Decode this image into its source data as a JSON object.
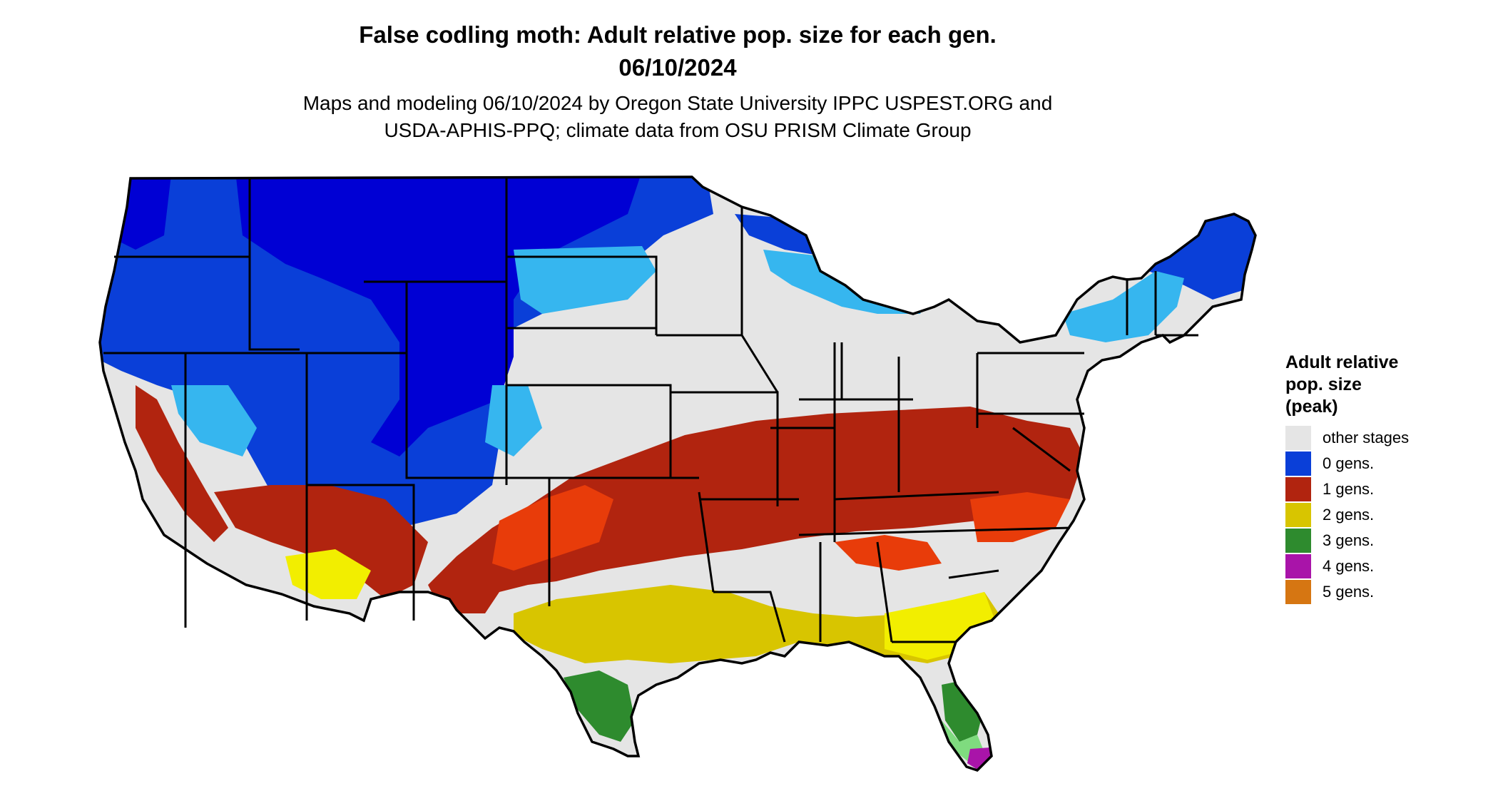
{
  "title": {
    "line1": "False codling moth: Adult relative pop. size for each gen.",
    "line2": "06/10/2024"
  },
  "subtitle": {
    "line1": "Maps and modeling 06/10/2024 by Oregon State University IPPC USPEST.ORG and",
    "line2": "USDA-APHIS-PPQ; climate data from OSU PRISM Climate Group"
  },
  "legend": {
    "title_lines": [
      "Adult relative",
      "pop. size",
      "(peak)"
    ],
    "items": [
      {
        "label": "other stages",
        "color": "#e5e5e5"
      },
      {
        "label": "0 gens.",
        "color": "#0a3fd8"
      },
      {
        "label": "1 gens.",
        "color": "#b1240f"
      },
      {
        "label": "2 gens.",
        "color": "#d8c500"
      },
      {
        "label": "3 gens.",
        "color": "#2e8b2e"
      },
      {
        "label": "4 gens.",
        "color": "#a914a9"
      },
      {
        "label": "5 gens.",
        "color": "#d67612"
      }
    ]
  },
  "map": {
    "region": "contiguous-united-states",
    "background_color": "#e5e5e5",
    "zone_colors": {
      "zero_gens_dark": "#0000d4",
      "zero_gens_mid": "#0a3fd8",
      "zero_gens_light": "#36b6ef",
      "one_gen": "#b1240f",
      "one_gen_bright": "#e83c0a",
      "two_gens": "#d8c500",
      "two_gens_bright": "#f2ee00",
      "three_gens": "#2e8b2e",
      "three_gens_light": "#7fdb7f",
      "four_gens": "#a914a9"
    }
  }
}
